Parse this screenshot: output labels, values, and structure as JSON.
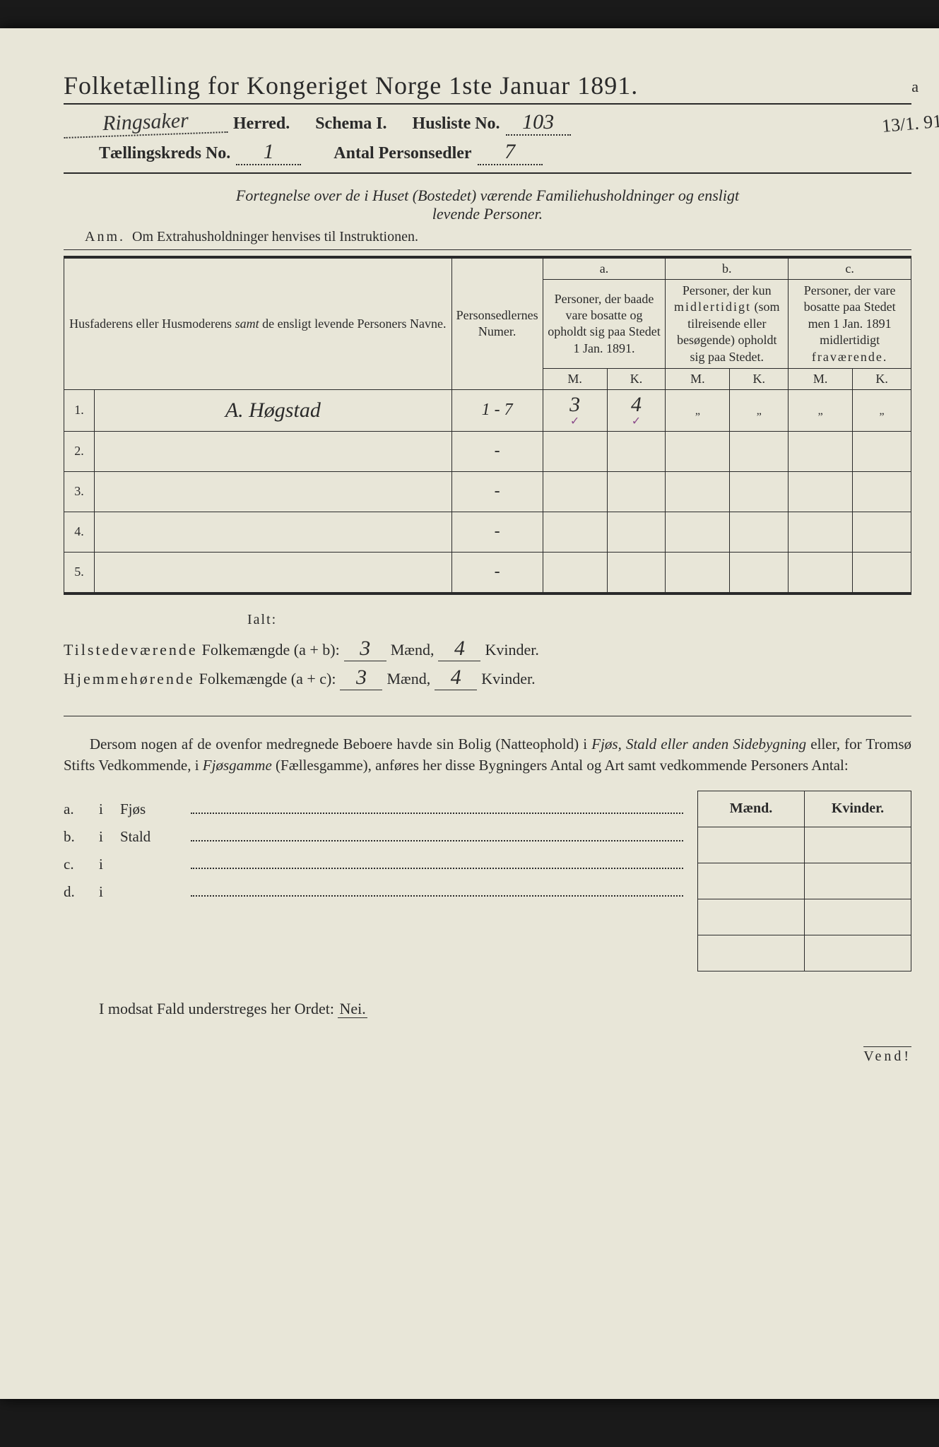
{
  "header": {
    "title": "Folketælling for Kongeriget Norge 1ste Januar 1891.",
    "margin_a": "a",
    "margin_date": "13/1. 91.",
    "herred_hand": "Ringsaker",
    "herred_label": "Herred.",
    "schema": "Schema I.",
    "husliste_label": "Husliste No.",
    "husliste_no": "103",
    "kreds_label": "Tællingskreds No.",
    "kreds_no": "1",
    "antal_label": "Antal Personsedler",
    "antal_val": "7"
  },
  "subtitle": {
    "line1": "Fortegnelse over de i Huset (Bostedet) værende Familiehusholdninger og ensligt",
    "line2": "levende Personer.",
    "anm_label": "Anm.",
    "anm_text": "Om Extrahusholdninger henvises til Instruktionen."
  },
  "table": {
    "col1": "Husfaderens eller Husmoderens samt de ensligt levende Personers Navne.",
    "col2": "Personsedlernes Numer.",
    "col_a_label": "a.",
    "col_a_desc": "Personer, der baade vare bosatte og opholdt sig paa Stedet 1 Jan. 1891.",
    "col_b_label": "b.",
    "col_b_desc": "Personer, der kun midlertidigt (som tilreisende eller besøgende) opholdt sig paa Stedet.",
    "col_c_label": "c.",
    "col_c_desc": "Personer, der vare bosatte paa Stedet men 1 Jan. 1891 midlertidigt fraværende.",
    "m": "M.",
    "k": "K.",
    "rows": [
      {
        "n": "1.",
        "name": "A. Høgstad",
        "num": "1 - 7",
        "am": "3",
        "ak": "4",
        "bm": "„",
        "bk": "„",
        "cm": "„",
        "ck": "„",
        "check": true
      },
      {
        "n": "2.",
        "name": "",
        "num": "-",
        "am": "",
        "ak": "",
        "bm": "",
        "bk": "",
        "cm": "",
        "ck": ""
      },
      {
        "n": "3.",
        "name": "",
        "num": "-",
        "am": "",
        "ak": "",
        "bm": "",
        "bk": "",
        "cm": "",
        "ck": ""
      },
      {
        "n": "4.",
        "name": "",
        "num": "-",
        "am": "",
        "ak": "",
        "bm": "",
        "bk": "",
        "cm": "",
        "ck": ""
      },
      {
        "n": "5.",
        "name": "",
        "num": "-",
        "am": "",
        "ak": "",
        "bm": "",
        "bk": "",
        "cm": "",
        "ck": ""
      }
    ]
  },
  "totals": {
    "ialt": "Ialt:",
    "line1_a": "Tilstedeværende",
    "line1_b": "Folkemængde (a + b):",
    "line2_a": "Hjemmehørende",
    "line2_b": "Folkemængde (a + c):",
    "maend": "Mænd,",
    "kvinder": "Kvinder.",
    "v1m": "3",
    "v1k": "4",
    "v2m": "3",
    "v2k": "4"
  },
  "para": {
    "text": "Dersom nogen af de ovenfor medregnede Beboere havde sin Bolig (Natteophold) i Fjøs, Stald eller anden Sidebygning eller, for Tromsø Stifts Vedkommende, i Fjøsgamme (Fællesgamme), anføres her disse Bygningers Antal og Art samt vedkommende Personers Antal:"
  },
  "outbuild": {
    "maend": "Mænd.",
    "kvinder": "Kvinder.",
    "rows": [
      {
        "lab": "a.",
        "i": "i",
        "type": "Fjøs"
      },
      {
        "lab": "b.",
        "i": "i",
        "type": "Stald"
      },
      {
        "lab": "c.",
        "i": "i",
        "type": ""
      },
      {
        "lab": "d.",
        "i": "i",
        "type": ""
      }
    ]
  },
  "footer": {
    "nei_line": "I modsat Fald understreges her Ordet:",
    "nei": "Nei.",
    "vend": "Vend!"
  },
  "colors": {
    "paper": "#e8e6d8",
    "ink": "#2a2a2a",
    "check": "#8a4a8a",
    "bg": "#1a1a1a"
  }
}
